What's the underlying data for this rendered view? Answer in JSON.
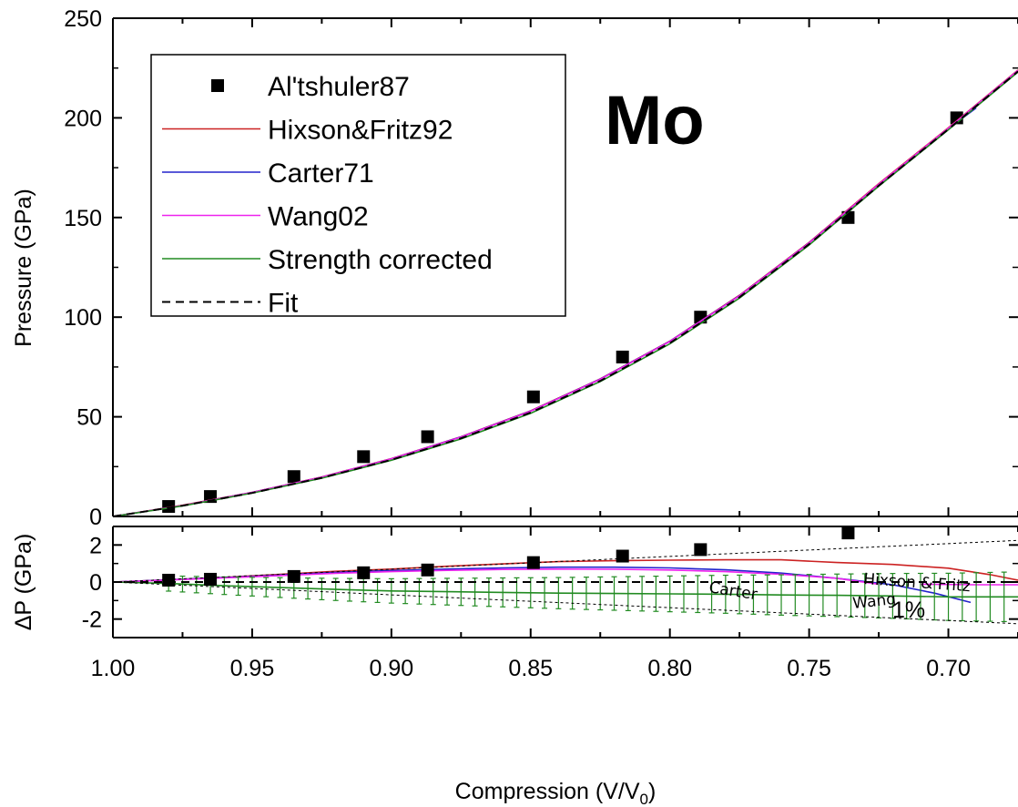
{
  "chart_data": [
    {
      "panel": "top",
      "type": "line",
      "title": "",
      "xlabel": "",
      "ylabel": "Pressure (GPa)",
      "xlim": [
        1.0,
        0.675
      ],
      "ylim": [
        0,
        250
      ],
      "x_reversed": true,
      "yticks": [
        "0",
        "50",
        "100",
        "150",
        "200",
        "250"
      ],
      "grid": false,
      "legend_position": "top-left",
      "annotation": "Mo",
      "series": [
        {
          "name": "Al'tshuler87",
          "kind": "scatter",
          "color": "#000000",
          "marker": "square",
          "points": [
            [
              0.98,
              5
            ],
            [
              0.965,
              10
            ],
            [
              0.935,
              20
            ],
            [
              0.91,
              30
            ],
            [
              0.887,
              40
            ],
            [
              0.849,
              60
            ],
            [
              0.817,
              80
            ],
            [
              0.789,
              100
            ],
            [
              0.736,
              150
            ],
            [
              0.697,
              200
            ]
          ]
        },
        {
          "name": "Hixson&Fritz92",
          "kind": "line",
          "color": "#cc2222",
          "points": [
            [
              1.0,
              0
            ],
            [
              0.975,
              5.6
            ],
            [
              0.95,
              12.1
            ],
            [
              0.925,
              19.8
            ],
            [
              0.9,
              29.0
            ],
            [
              0.875,
              40.0
            ],
            [
              0.85,
              53.0
            ],
            [
              0.825,
              69.0
            ],
            [
              0.8,
              88.0
            ],
            [
              0.775,
              111.0
            ],
            [
              0.75,
              137.5
            ],
            [
              0.725,
              167.0
            ],
            [
              0.7,
              195.0
            ],
            [
              0.675,
              224.0
            ]
          ]
        },
        {
          "name": "Carter71",
          "kind": "line",
          "color": "#2222cc",
          "points": [
            [
              1.0,
              0
            ],
            [
              0.975,
              5.5
            ],
            [
              0.95,
              12.0
            ],
            [
              0.925,
              19.7
            ],
            [
              0.9,
              28.9
            ],
            [
              0.875,
              39.9
            ],
            [
              0.85,
              52.9
            ],
            [
              0.825,
              68.9
            ],
            [
              0.8,
              87.9
            ],
            [
              0.775,
              110.8
            ],
            [
              0.75,
              137.3
            ],
            [
              0.725,
              166.6
            ],
            [
              0.7,
              194.6
            ],
            [
              0.69,
              205.0
            ]
          ]
        },
        {
          "name": "Wang02",
          "kind": "line",
          "color": "#ee22ee",
          "points": [
            [
              1.0,
              0
            ],
            [
              0.975,
              5.5
            ],
            [
              0.95,
              12.0
            ],
            [
              0.925,
              19.7
            ],
            [
              0.9,
              28.9
            ],
            [
              0.875,
              39.8
            ],
            [
              0.85,
              52.8
            ],
            [
              0.825,
              68.8
            ],
            [
              0.8,
              87.8
            ],
            [
              0.775,
              110.7
            ],
            [
              0.75,
              137.2
            ],
            [
              0.725,
              166.7
            ],
            [
              0.7,
              194.8
            ],
            [
              0.675,
              223.8
            ]
          ]
        },
        {
          "name": "Strength corrected",
          "kind": "line",
          "color": "#228b22",
          "points": [
            [
              1.0,
              0
            ],
            [
              0.975,
              5.3
            ],
            [
              0.95,
              11.7
            ],
            [
              0.925,
              19.2
            ],
            [
              0.9,
              28.2
            ],
            [
              0.875,
              38.9
            ],
            [
              0.85,
              51.8
            ],
            [
              0.825,
              67.7
            ],
            [
              0.8,
              86.6
            ],
            [
              0.775,
              109.6
            ],
            [
              0.75,
              136.2
            ],
            [
              0.725,
              165.7
            ],
            [
              0.7,
              194.0
            ],
            [
              0.675,
              223.0
            ]
          ]
        },
        {
          "name": "Fit",
          "kind": "line",
          "color": "#000000",
          "dash": "dashed",
          "points": [
            [
              1.0,
              0
            ],
            [
              0.975,
              5.4
            ],
            [
              0.95,
              11.8
            ],
            [
              0.925,
              19.4
            ],
            [
              0.9,
              28.4
            ],
            [
              0.875,
              39.2
            ],
            [
              0.85,
              52.1
            ],
            [
              0.825,
              68.0
            ],
            [
              0.8,
              87.0
            ],
            [
              0.775,
              110.0
            ],
            [
              0.75,
              136.6
            ],
            [
              0.725,
              166.0
            ],
            [
              0.7,
              194.3
            ],
            [
              0.675,
              223.3
            ]
          ]
        }
      ]
    },
    {
      "panel": "bottom",
      "type": "line",
      "title": "",
      "xlabel": "Compression (V/V",
      "xlabel_sub": "0",
      "xlabel_close": ")",
      "ylabel": "ΔP (GPa)",
      "xlim": [
        1.0,
        0.675
      ],
      "ylim": [
        -3,
        3
      ],
      "x_reversed": true,
      "xticks": [
        "1.00",
        "0.95",
        "0.90",
        "0.85",
        "0.80",
        "0.75",
        "0.70"
      ],
      "yticks": [
        "2",
        "0",
        "-2"
      ],
      "grid": false,
      "annotations": [
        "Carter",
        "Hixson & Fritz",
        "Wang",
        "1%"
      ],
      "series": [
        {
          "name": "Al'tshuler87",
          "kind": "scatter",
          "color": "#000000",
          "marker": "square",
          "points": [
            [
              0.98,
              0.1
            ],
            [
              0.965,
              0.15
            ],
            [
              0.935,
              0.3
            ],
            [
              0.91,
              0.5
            ],
            [
              0.887,
              0.65
            ],
            [
              0.849,
              1.05
            ],
            [
              0.817,
              1.4
            ],
            [
              0.789,
              1.75
            ],
            [
              0.736,
              2.65
            ]
          ]
        },
        {
          "name": "Hixson&Fritz92",
          "kind": "line",
          "color": "#cc2222",
          "points": [
            [
              1.0,
              0
            ],
            [
              0.98,
              0.12
            ],
            [
              0.96,
              0.25
            ],
            [
              0.94,
              0.42
            ],
            [
              0.92,
              0.58
            ],
            [
              0.9,
              0.7
            ],
            [
              0.88,
              0.85
            ],
            [
              0.86,
              0.98
            ],
            [
              0.84,
              1.1
            ],
            [
              0.82,
              1.15
            ],
            [
              0.8,
              1.18
            ],
            [
              0.78,
              1.2
            ],
            [
              0.76,
              1.2
            ],
            [
              0.74,
              1.05
            ],
            [
              0.72,
              0.95
            ],
            [
              0.7,
              0.75
            ],
            [
              0.685,
              0.4
            ],
            [
              0.675,
              0.1
            ]
          ]
        },
        {
          "name": "Carter71",
          "kind": "line",
          "color": "#2222cc",
          "points": [
            [
              1.0,
              0
            ],
            [
              0.98,
              0.12
            ],
            [
              0.96,
              0.24
            ],
            [
              0.94,
              0.38
            ],
            [
              0.92,
              0.52
            ],
            [
              0.9,
              0.62
            ],
            [
              0.88,
              0.7
            ],
            [
              0.86,
              0.76
            ],
            [
              0.84,
              0.8
            ],
            [
              0.82,
              0.8
            ],
            [
              0.8,
              0.76
            ],
            [
              0.78,
              0.66
            ],
            [
              0.76,
              0.48
            ],
            [
              0.74,
              0.2
            ],
            [
              0.72,
              -0.15
            ],
            [
              0.705,
              -0.6
            ],
            [
              0.692,
              -1.1
            ]
          ]
        },
        {
          "name": "Wang02",
          "kind": "line",
          "color": "#ee22ee",
          "points": [
            [
              1.0,
              0
            ],
            [
              0.98,
              0.11
            ],
            [
              0.96,
              0.22
            ],
            [
              0.94,
              0.35
            ],
            [
              0.92,
              0.47
            ],
            [
              0.9,
              0.56
            ],
            [
              0.88,
              0.63
            ],
            [
              0.86,
              0.68
            ],
            [
              0.84,
              0.7
            ],
            [
              0.82,
              0.69
            ],
            [
              0.8,
              0.65
            ],
            [
              0.78,
              0.56
            ],
            [
              0.76,
              0.42
            ],
            [
              0.74,
              0.2
            ],
            [
              0.725,
              -0.12
            ]
          ]
        },
        {
          "name": "Wang02 (continued)",
          "kind": "line",
          "color": "#ee22ee",
          "points": [
            [
              0.71,
              -0.12
            ],
            [
              0.69,
              -0.15
            ],
            [
              0.675,
              -0.15
            ]
          ]
        },
        {
          "name": "Strength corrected",
          "kind": "line",
          "color": "#228b22",
          "error_bars": true,
          "points": [
            [
              1.0,
              0
            ],
            [
              0.98,
              -0.08
            ],
            [
              0.96,
              -0.2
            ],
            [
              0.94,
              -0.3
            ],
            [
              0.92,
              -0.4
            ],
            [
              0.9,
              -0.48
            ],
            [
              0.88,
              -0.52
            ],
            [
              0.86,
              -0.56
            ],
            [
              0.84,
              -0.6
            ],
            [
              0.82,
              -0.62
            ],
            [
              0.8,
              -0.64
            ],
            [
              0.78,
              -0.66
            ],
            [
              0.76,
              -0.7
            ],
            [
              0.74,
              -0.72
            ],
            [
              0.72,
              -0.75
            ],
            [
              0.7,
              -0.8
            ],
            [
              0.675,
              -0.8
            ]
          ]
        },
        {
          "name": "Fit",
          "kind": "line",
          "color": "#000000",
          "dash": "dashed",
          "points": [
            [
              1.0,
              0
            ],
            [
              0.675,
              0
            ]
          ]
        },
        {
          "name": "1% bound",
          "kind": "line",
          "color": "#000000",
          "dash": "dotted",
          "points": [
            [
              1.0,
              0
            ],
            [
              0.675,
              2.25
            ]
          ]
        },
        {
          "name": "-1% bound",
          "kind": "line",
          "color": "#000000",
          "dash": "dotted",
          "points": [
            [
              1.0,
              0
            ],
            [
              0.675,
              -2.25
            ]
          ]
        }
      ]
    }
  ],
  "legend": {
    "entries": [
      {
        "label": "Al'tshuler87",
        "color": "#000000",
        "kind": "marker"
      },
      {
        "label": "Hixson&Fritz92",
        "color": "#cc2222",
        "kind": "line"
      },
      {
        "label": "Carter71",
        "color": "#2222cc",
        "kind": "line"
      },
      {
        "label": "Wang02",
        "color": "#ee22ee",
        "kind": "line"
      },
      {
        "label": "Strength corrected",
        "color": "#228b22",
        "kind": "line"
      },
      {
        "label": "Fit",
        "color": "#000000",
        "kind": "dashed"
      }
    ]
  }
}
